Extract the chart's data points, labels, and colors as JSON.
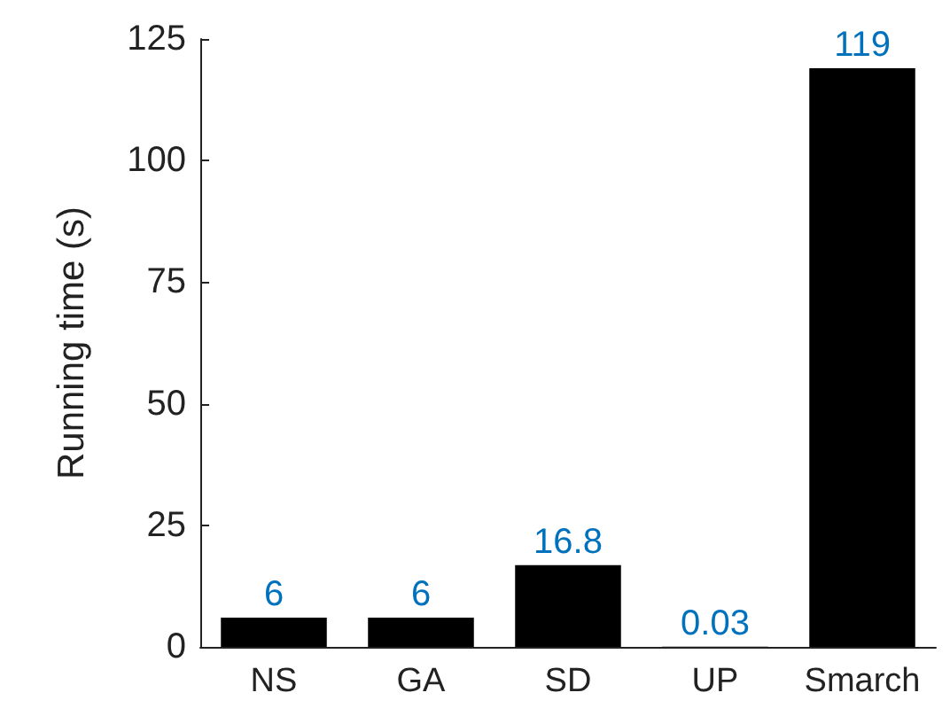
{
  "chart_data": {
    "type": "bar",
    "ylabel": "Running time (s)",
    "categories": [
      "NS",
      "GA",
      "SD",
      "UP",
      "Smarch"
    ],
    "values": [
      6,
      6,
      16.8,
      0.03,
      119
    ],
    "color": "#000000",
    "ylim": [
      0,
      125
    ],
    "yticks": [
      0,
      25,
      50,
      75,
      100,
      125
    ],
    "grid": false,
    "data_labels": true
  }
}
